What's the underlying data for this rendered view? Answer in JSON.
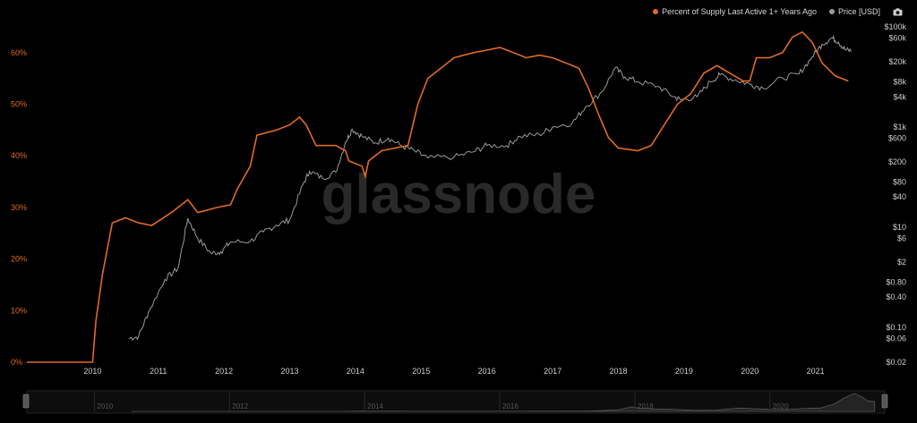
{
  "legend": {
    "supply_label": "Percent of Supply Last Active 1+ Years Ago",
    "price_label": "Price [USD]"
  },
  "watermark": "glassnode",
  "colors": {
    "supply": "#e06a25",
    "price": "#9a9a9a",
    "background": "#000000"
  },
  "icons": {
    "camera": "camera-icon"
  },
  "chart_data": {
    "type": "line",
    "x_ticks": [
      "2010",
      "2011",
      "2012",
      "2013",
      "2014",
      "2015",
      "2016",
      "2017",
      "2018",
      "2019",
      "2020",
      "2021"
    ],
    "y_left_ticks": [
      "0%",
      "10%",
      "20%",
      "30%",
      "40%",
      "50%",
      "60%"
    ],
    "y_left_range": [
      0,
      0.65
    ],
    "y_right_ticks": [
      "$0.02",
      "$0.06",
      "$0.10",
      "$0.40",
      "$0.80",
      "$2",
      "$6",
      "$10",
      "$40",
      "$80",
      "$200",
      "$600",
      "$1k",
      "$4k",
      "$8k",
      "$20k",
      "$60k",
      "$100k"
    ],
    "y_right_scale": "log",
    "y_right_range": [
      0.02,
      100000
    ],
    "grid": false,
    "legend_position": "top-right",
    "navigator_ticks": [
      "2010",
      "2012",
      "2014",
      "2016",
      "2018",
      "2020"
    ],
    "series": [
      {
        "name": "Percent of Supply Last Active 1+ Years Ago",
        "axis": "left",
        "points": [
          [
            "2009.0",
            0
          ],
          [
            "2010.0",
            0
          ],
          [
            "2010.05",
            0.08
          ],
          [
            "2010.15",
            0.17
          ],
          [
            "2010.3",
            0.27
          ],
          [
            "2010.5",
            0.28
          ],
          [
            "2010.7",
            0.27
          ],
          [
            "2010.9",
            0.265
          ],
          [
            "2011.2",
            0.29
          ],
          [
            "2011.45",
            0.315
          ],
          [
            "2011.6",
            0.29
          ],
          [
            "2011.9",
            0.3
          ],
          [
            "2012.1",
            0.305
          ],
          [
            "2012.2",
            0.335
          ],
          [
            "2012.4",
            0.38
          ],
          [
            "2012.5",
            0.44
          ],
          [
            "2012.8",
            0.45
          ],
          [
            "2013.0",
            0.46
          ],
          [
            "2013.15",
            0.475
          ],
          [
            "2013.25",
            0.46
          ],
          [
            "2013.4",
            0.42
          ],
          [
            "2013.7",
            0.42
          ],
          [
            "2013.85",
            0.41
          ],
          [
            "2013.9",
            0.39
          ],
          [
            "2014.1",
            0.38
          ],
          [
            "2014.15",
            0.36
          ],
          [
            "2014.2",
            0.39
          ],
          [
            "2014.4",
            0.41
          ],
          [
            "2014.8",
            0.42
          ],
          [
            "2014.95",
            0.5
          ],
          [
            "2015.1",
            0.55
          ],
          [
            "2015.3",
            0.57
          ],
          [
            "2015.5",
            0.59
          ],
          [
            "2015.8",
            0.6
          ],
          [
            "2016.0",
            0.605
          ],
          [
            "2016.2",
            0.61
          ],
          [
            "2016.4",
            0.6
          ],
          [
            "2016.6",
            0.59
          ],
          [
            "2016.8",
            0.595
          ],
          [
            "2017.0",
            0.59
          ],
          [
            "2017.2",
            0.58
          ],
          [
            "2017.4",
            0.57
          ],
          [
            "2017.55",
            0.53
          ],
          [
            "2017.7",
            0.48
          ],
          [
            "2017.85",
            0.435
          ],
          [
            "2018.0",
            0.415
          ],
          [
            "2018.3",
            0.41
          ],
          [
            "2018.5",
            0.42
          ],
          [
            "2018.7",
            0.46
          ],
          [
            "2018.9",
            0.5
          ],
          [
            "2019.1",
            0.52
          ],
          [
            "2019.3",
            0.56
          ],
          [
            "2019.5",
            0.575
          ],
          [
            "2019.7",
            0.56
          ],
          [
            "2019.9",
            0.545
          ],
          [
            "2020.0",
            0.545
          ],
          [
            "2020.1",
            0.59
          ],
          [
            "2020.3",
            0.59
          ],
          [
            "2020.5",
            0.6
          ],
          [
            "2020.65",
            0.63
          ],
          [
            "2020.8",
            0.64
          ],
          [
            "2020.95",
            0.62
          ],
          [
            "2021.1",
            0.58
          ],
          [
            "2021.3",
            0.555
          ],
          [
            "2021.5",
            0.545
          ]
        ]
      },
      {
        "name": "Price [USD]",
        "axis": "right",
        "points": [
          [
            "2010.55",
            0.06
          ],
          [
            "2010.7",
            0.065
          ],
          [
            "2010.85",
            0.2
          ],
          [
            "2011.1",
            0.9
          ],
          [
            "2011.3",
            1.5
          ],
          [
            "2011.45",
            15
          ],
          [
            "2011.6",
            6
          ],
          [
            "2011.8",
            3
          ],
          [
            "2011.95",
            3.2
          ],
          [
            "2012.1",
            5
          ],
          [
            "2012.4",
            5.2
          ],
          [
            "2012.6",
            8
          ],
          [
            "2012.8",
            11
          ],
          [
            "2013.0",
            14
          ],
          [
            "2013.2",
            70
          ],
          [
            "2013.3",
            130
          ],
          [
            "2013.5",
            95
          ],
          [
            "2013.7",
            125
          ],
          [
            "2013.85",
            500
          ],
          [
            "2013.95",
            900
          ],
          [
            "2014.1",
            650
          ],
          [
            "2014.3",
            480
          ],
          [
            "2014.5",
            600
          ],
          [
            "2014.7",
            420
          ],
          [
            "2014.9",
            330
          ],
          [
            "2015.1",
            240
          ],
          [
            "2015.5",
            250
          ],
          [
            "2015.8",
            320
          ],
          [
            "2016.0",
            430
          ],
          [
            "2016.3",
            420
          ],
          [
            "2016.5",
            650
          ],
          [
            "2016.8",
            700
          ],
          [
            "2017.0",
            1000
          ],
          [
            "2017.3",
            1200
          ],
          [
            "2017.5",
            2500
          ],
          [
            "2017.75",
            5000
          ],
          [
            "2017.95",
            15000
          ],
          [
            "2018.1",
            10000
          ],
          [
            "2018.3",
            8000
          ],
          [
            "2018.6",
            6500
          ],
          [
            "2018.85",
            4000
          ],
          [
            "2018.95",
            3500
          ],
          [
            "2019.2",
            4000
          ],
          [
            "2019.4",
            8000
          ],
          [
            "2019.55",
            11000
          ],
          [
            "2019.8",
            8500
          ],
          [
            "2020.0",
            7200
          ],
          [
            "2020.2",
            6000
          ],
          [
            "2020.5",
            9500
          ],
          [
            "2020.75",
            11500
          ],
          [
            "2020.95",
            25000
          ],
          [
            "2021.1",
            45000
          ],
          [
            "2021.25",
            60000
          ],
          [
            "2021.35",
            50000
          ],
          [
            "2021.45",
            35000
          ],
          [
            "2021.55",
            33000
          ]
        ]
      }
    ]
  }
}
